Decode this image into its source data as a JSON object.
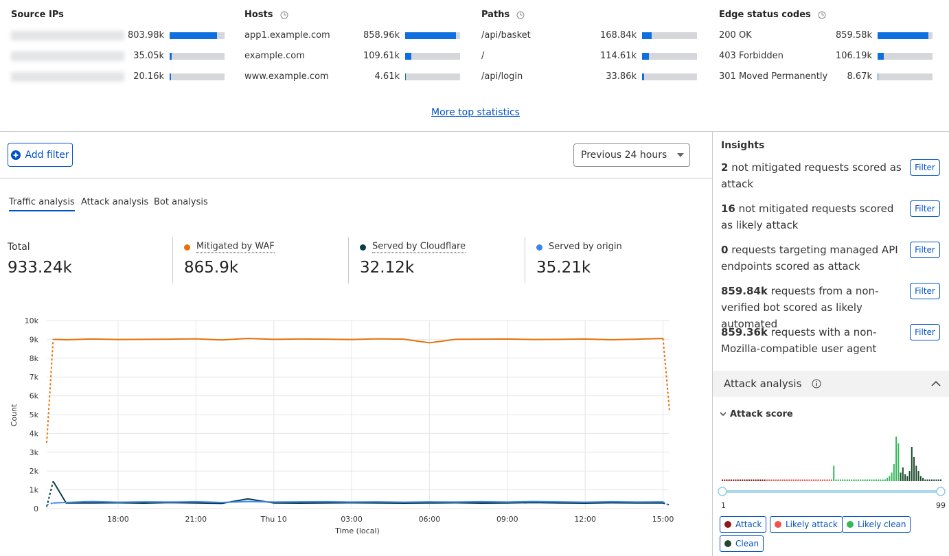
{
  "top_stats": {
    "more_link": "More top statistics",
    "columns": [
      {
        "title": "Source IPs",
        "rows": [
          {
            "value": 803.98,
            "label": "803.98k"
          },
          {
            "value": 35.05,
            "label": "35.05k"
          },
          {
            "value": 20.16,
            "label": "20.16k"
          }
        ]
      },
      {
        "title": "Hosts",
        "rows": [
          {
            "name": "app1.example.com",
            "value": 858.96,
            "label": "858.96k"
          },
          {
            "name": "example.com",
            "value": 109.61,
            "label": "109.61k"
          },
          {
            "name": "www.example.com",
            "value": 4.61,
            "label": "4.61k"
          }
        ]
      },
      {
        "title": "Paths",
        "rows": [
          {
            "name": "/api/basket",
            "value": 168.84,
            "label": "168.84k"
          },
          {
            "name": "/",
            "value": 114.61,
            "label": "114.61k"
          },
          {
            "name": "/api/login",
            "value": 33.86,
            "label": "33.86k"
          }
        ]
      },
      {
        "title": "Edge status codes",
        "rows": [
          {
            "name": "200 OK",
            "value": 859.58,
            "label": "859.58k"
          },
          {
            "name": "403 Forbidden",
            "value": 106.19,
            "label": "106.19k"
          },
          {
            "name": "301 Moved Permanently",
            "value": 8.67,
            "label": "8.67k"
          }
        ]
      }
    ]
  },
  "toolbar": {
    "add_filter": "Add filter",
    "time_range": "Previous 24 hours"
  },
  "tabs": [
    "Traffic analysis",
    "Attack analysis",
    "Bot analysis"
  ],
  "summary": {
    "total_label": "Total",
    "total": {
      "value": 933.24,
      "label": "933.24k"
    },
    "series_totals": [
      "865.9k",
      "32.12k",
      "35.21k"
    ]
  },
  "insights": {
    "title": "Insights",
    "items": [
      {
        "count": "2",
        "text": "not mitigated requests scored as attack",
        "action": "Filter"
      },
      {
        "count": "16",
        "text": "not mitigated requests scored as likely attack",
        "action": "Filter"
      },
      {
        "count": "0",
        "text": "requests targeting managed API endpoints scored as attack",
        "action": "Filter"
      },
      {
        "count": "859.84k",
        "text": "requests from a non-verified bot scored as likely automated",
        "action": "Filter"
      },
      {
        "count": "859.36k",
        "text": "requests with a non-Mozilla-compatible user agent",
        "action": "Filter"
      }
    ]
  },
  "attack_panel": {
    "title": "Attack analysis",
    "section": "Attack score"
  },
  "chart_data": [
    {
      "type": "line",
      "x_label": "Time (local)",
      "y_label": "Count",
      "x": [
        15.25,
        15.5,
        16,
        17,
        18,
        19,
        20,
        21,
        22,
        23,
        24,
        25,
        26,
        27,
        28,
        29,
        30,
        31,
        32,
        33,
        34,
        35,
        36,
        37,
        38,
        39,
        39.25
      ],
      "xlim": [
        15.25,
        39.25
      ],
      "xticks": [
        {
          "value": 18,
          "label": "18:00"
        },
        {
          "value": 21,
          "label": "21:00"
        },
        {
          "value": 24,
          "label": "Thu 10"
        },
        {
          "value": 27,
          "label": "03:00"
        },
        {
          "value": 30,
          "label": "06:00"
        },
        {
          "value": 33,
          "label": "09:00"
        },
        {
          "value": 36,
          "label": "12:00"
        },
        {
          "value": 39,
          "label": "15:00"
        }
      ],
      "ylim": [
        0,
        10000
      ],
      "yticks": [
        0,
        {
          "value": 1000,
          "label": "1k"
        },
        {
          "value": 2000,
          "label": "2k"
        },
        {
          "value": 3000,
          "label": "3k"
        },
        {
          "value": 4000,
          "label": "4k"
        },
        {
          "value": 5000,
          "label": "5k"
        },
        {
          "value": 6000,
          "label": "6k"
        },
        {
          "value": 7000,
          "label": "7k"
        },
        {
          "value": 8000,
          "label": "8k"
        },
        {
          "value": 9000,
          "label": "9k"
        },
        {
          "value": 10000,
          "label": "10k"
        }
      ],
      "grid": true,
      "series": [
        {
          "name": "Mitigated by WAF",
          "color": "#e8710a",
          "values": [
            3500,
            9000,
            8980,
            9020,
            8990,
            9000,
            9010,
            9030,
            8970,
            9050,
            9000,
            9020,
            9010,
            8990,
            9030,
            9010,
            8820,
            9000,
            9010,
            9020,
            8990,
            9000,
            9020,
            8980,
            9010,
            9050,
            5200
          ]
        },
        {
          "name": "Served by Cloudflare",
          "color": "#0b3c4a",
          "values": [
            100,
            1450,
            300,
            300,
            310,
            290,
            320,
            300,
            280,
            520,
            300,
            290,
            300,
            310,
            300,
            290,
            300,
            310,
            290,
            300,
            320,
            300,
            290,
            310,
            300,
            300,
            200
          ]
        },
        {
          "name": "Served by origin",
          "color": "#3a86f0",
          "values": [
            200,
            300,
            330,
            380,
            340,
            360,
            350,
            370,
            330,
            380,
            350,
            360,
            370,
            350,
            360,
            340,
            360,
            350,
            370,
            350,
            380,
            360,
            340,
            370,
            350,
            360,
            150
          ]
        }
      ]
    },
    {
      "type": "bar",
      "xlim": [
        1,
        99
      ],
      "xticks": [
        1,
        99
      ],
      "series": [
        {
          "name": "Attack",
          "color": "#8b1a1a",
          "x": [
            1,
            2,
            3,
            4,
            5,
            6,
            7,
            8,
            9,
            10,
            11,
            12,
            13,
            14,
            15,
            16,
            17,
            18,
            19,
            20
          ],
          "values": [
            1,
            1,
            1,
            1,
            1,
            1,
            1,
            1,
            1,
            1,
            1,
            1,
            1,
            1,
            1,
            1,
            1,
            1,
            1,
            1
          ]
        },
        {
          "name": "Likely attack",
          "color": "#ef5350",
          "x": [
            21,
            22,
            23,
            24,
            25,
            26,
            27,
            28,
            29,
            30,
            31,
            32,
            33,
            34,
            35,
            36,
            37,
            38,
            39,
            40,
            41,
            42,
            43,
            44,
            45,
            46,
            47,
            48,
            49,
            50
          ],
          "values": [
            1,
            1,
            1,
            1,
            1,
            1,
            1,
            1,
            1,
            1,
            1,
            1,
            1,
            1,
            1,
            1,
            1,
            1,
            1,
            1,
            1,
            1,
            1,
            1,
            1,
            1,
            1,
            1,
            1,
            1
          ]
        },
        {
          "name": "Likely clean",
          "color": "#34b85a",
          "x": [
            51,
            52,
            53,
            54,
            55,
            56,
            57,
            58,
            59,
            60,
            61,
            62,
            63,
            64,
            65,
            66,
            67,
            68,
            69,
            70,
            71,
            72,
            73,
            74,
            75,
            76,
            77,
            78,
            79,
            80
          ],
          "values": [
            9,
            1,
            1,
            1,
            1,
            1,
            1,
            1,
            1,
            1,
            1,
            1,
            1,
            1,
            1,
            1,
            1,
            1,
            1,
            1,
            1,
            1,
            1,
            1,
            2,
            3,
            5,
            10,
            26,
            22
          ]
        },
        {
          "name": "Clean",
          "color": "#1d4a2c",
          "x": [
            81,
            82,
            83,
            84,
            85,
            86,
            87,
            88,
            89,
            90,
            91,
            92,
            93,
            94,
            95,
            96,
            97,
            98,
            99
          ],
          "values": [
            5,
            8,
            4,
            3,
            6,
            20,
            14,
            9,
            6,
            3,
            2,
            1,
            1,
            1,
            1,
            1,
            1,
            1,
            1
          ]
        }
      ]
    }
  ]
}
